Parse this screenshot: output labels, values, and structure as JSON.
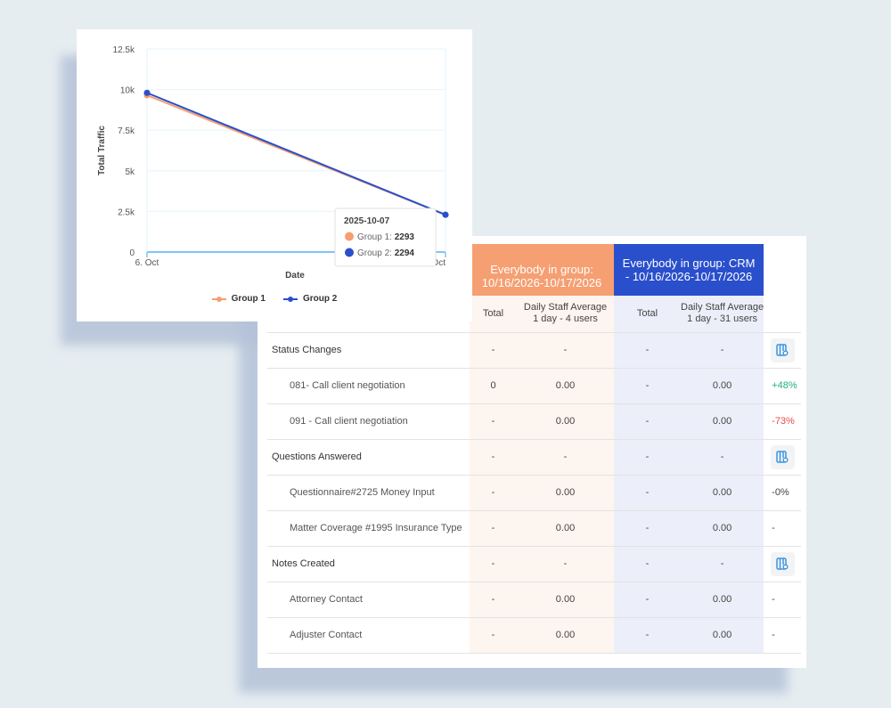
{
  "chart_data": {
    "type": "line",
    "title": "",
    "xlabel": "Date",
    "ylabel": "Total Traffic",
    "x": [
      "6. Oct",
      "7. Oct"
    ],
    "yticks": [
      "0",
      "2.5k",
      "5k",
      "7.5k",
      "10k",
      "12.5k"
    ],
    "ylim": [
      0,
      12500
    ],
    "series": [
      {
        "name": "Group 1",
        "color": "#f59f72",
        "values": [
          9650,
          2293
        ]
      },
      {
        "name": "Group 2",
        "color": "#2a4fcc",
        "values": [
          9800,
          2294
        ]
      }
    ],
    "tooltip": {
      "title": "2025-10-07",
      "rows": [
        {
          "label": "Group 1: ",
          "value": "2293"
        },
        {
          "label": "Group 2: ",
          "value": "2294"
        }
      ]
    },
    "legend": "bottom"
  },
  "table": {
    "group1": "Everybody in group: 10/16/2026-10/17/2026",
    "group2": "Everybody in group: CRM - 10/16/2026-10/17/2026",
    "sub": [
      "Total",
      "Daily Staff Average",
      "1 day - 4 users",
      "Total",
      "Daily Staff Average",
      "1 day - 31 users"
    ],
    "rows": [
      {
        "label": "Status Changes",
        "section": true,
        "cells": [
          "-",
          "-",
          "-",
          "-"
        ],
        "extra": "action"
      },
      {
        "label": "081- Call client negotiation",
        "cells": [
          "0",
          "0.00",
          "-",
          "0.00"
        ],
        "extra": "+48%",
        "cls": "pos"
      },
      {
        "label": "091 - Call client negotiation",
        "cells": [
          "-",
          "0.00",
          "-",
          "0.00"
        ],
        "extra": "-73%",
        "cls": "neg"
      },
      {
        "label": "Questions Answered",
        "section": true,
        "cells": [
          "-",
          "-",
          "-",
          "-"
        ],
        "extra": "action"
      },
      {
        "label": "Questionnaire#2725 Money Input",
        "cells": [
          "-",
          "0.00",
          "-",
          "0.00"
        ],
        "extra": "-0%"
      },
      {
        "label": "Matter Coverage #1995 Insurance Type",
        "cells": [
          "-",
          "0.00",
          "-",
          "0.00"
        ],
        "extra": "-"
      },
      {
        "label": "Notes Created",
        "section": true,
        "cells": [
          "-",
          "-",
          "-",
          "-"
        ],
        "extra": "action"
      },
      {
        "label": "Attorney Contact",
        "cells": [
          "-",
          "0.00",
          "-",
          "0.00"
        ],
        "extra": "-"
      },
      {
        "label": "Adjuster Contact",
        "cells": [
          "-",
          "0.00",
          "-",
          "0.00"
        ],
        "extra": "-"
      }
    ]
  }
}
